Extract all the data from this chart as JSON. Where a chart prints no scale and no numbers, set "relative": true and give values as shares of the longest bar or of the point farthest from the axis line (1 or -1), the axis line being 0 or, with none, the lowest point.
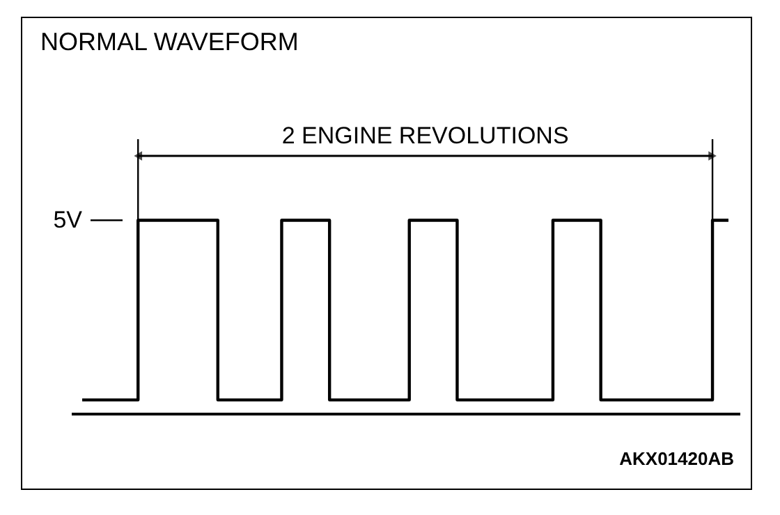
{
  "chart_data": {
    "type": "step",
    "title": "NORMAL WAVEFORM",
    "relative": true,
    "categories": [
      null,
      null,
      null,
      null,
      null,
      null,
      null,
      null,
      null,
      null,
      null,
      null,
      null,
      null,
      null,
      null,
      null,
      null,
      null,
      null,
      null,
      null,
      null,
      null,
      null,
      null,
      null,
      null,
      null,
      null,
      null,
      null,
      null,
      null,
      null,
      null,
      null,
      null,
      null,
      null,
      null,
      null,
      null,
      null,
      null,
      null,
      null,
      null,
      null,
      null,
      null,
      null,
      null,
      null,
      null,
      null,
      null,
      null,
      null,
      null,
      null,
      null,
      null,
      null,
      null,
      null,
      null,
      null,
      null,
      null,
      null,
      null,
      null,
      null,
      null,
      null,
      null,
      null,
      null,
      null,
      null,
      null
    ],
    "series": [
      {
        "color": "#000000",
        "values": [
          0.07,
          0.07,
          0.07,
          0.07,
          0.07,
          0.07,
          0.07,
          1,
          1,
          1,
          1,
          1,
          1,
          1,
          1,
          1,
          1,
          0.07,
          0.07,
          0.07,
          0.07,
          0.07,
          0.07,
          0.07,
          0.07,
          1,
          1,
          1,
          1,
          1,
          1,
          0.07,
          0.07,
          0.07,
          0.07,
          0.07,
          0.07,
          0.07,
          0.07,
          0.07,
          0.07,
          1,
          1,
          1,
          1,
          1,
          1,
          0.07,
          0.07,
          0.07,
          0.07,
          0.07,
          0.07,
          0.07,
          0.07,
          0.07,
          0.07,
          0.07,
          0.07,
          1,
          1,
          1,
          1,
          1,
          1,
          0.07,
          0.07,
          0.07,
          0.07,
          0.07,
          0.07,
          0.07,
          0.07,
          0.07,
          0.07,
          0.07,
          0.07,
          0.07,
          0.07,
          1,
          1,
          1
        ]
      }
    ],
    "annotations": [
      "2 ENGINE REVOLUTIONS",
      "5V",
      "AKX01420AB"
    ]
  }
}
